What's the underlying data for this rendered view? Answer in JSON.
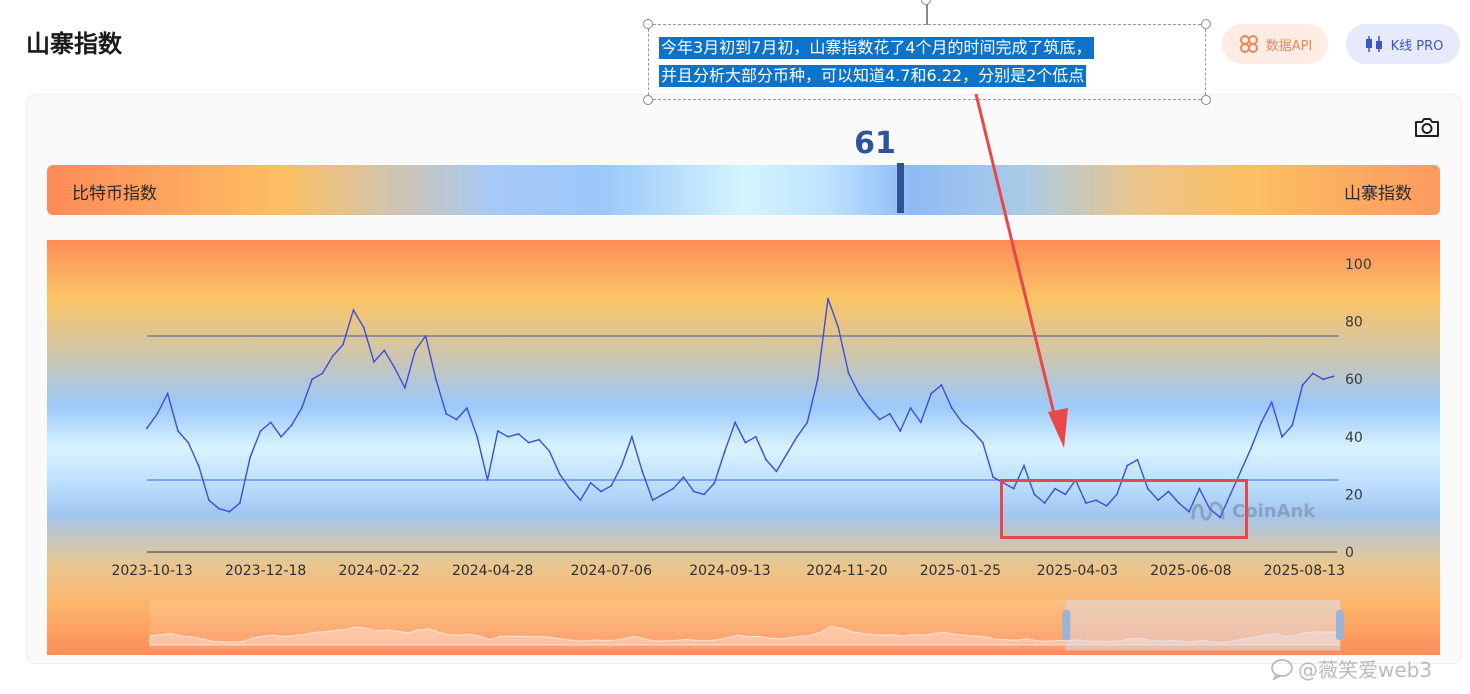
{
  "page": {
    "title": "山寨指数"
  },
  "buttons": {
    "api_label": "数据API",
    "kline_label": "K线 PRO"
  },
  "gauge": {
    "current_value": "61",
    "left_label": "比特币指数",
    "right_label": "山寨指数"
  },
  "annotation": {
    "line1": "今年3月初到7月初，山寨指数花了4个月的时间完成了筑底，",
    "line2": "并且分析大部分币种，可以知道4.7和6.22，分别是2个低点"
  },
  "watermark": {
    "chart": "CoinAnk",
    "footer": "@薇笑爱web3"
  },
  "colors": {
    "series_line": "#3b4fd9",
    "marker": "#2d5596",
    "highlight": "#e84848",
    "annotation_bg": "#0c73c9"
  },
  "icons": {
    "camera": "camera-icon",
    "api": "api-icon",
    "kline": "candlestick-icon"
  },
  "chart_data": {
    "type": "line",
    "title": "",
    "ylim": [
      0,
      100
    ],
    "y_ticks": [
      "0",
      "20",
      "40",
      "60",
      "80",
      "100"
    ],
    "x_ticks": [
      "2023-10-13",
      "2023-12-18",
      "2024-02-22",
      "2024-04-28",
      "2024-07-06",
      "2024-09-13",
      "2024-11-20",
      "2025-01-25",
      "2025-04-03",
      "2025-06-08",
      "2025-08-13"
    ],
    "x_range": [
      "2023-10-10",
      "2025-09-01"
    ],
    "reference_lines": [
      75,
      25
    ],
    "grid": false,
    "zoom_window": [
      0.77,
      1.0
    ],
    "series": [
      {
        "x": [
          "2023-10-10",
          "2023-10-16",
          "2023-10-22",
          "2023-10-28",
          "2023-11-03",
          "2023-11-09",
          "2023-11-15",
          "2023-11-21",
          "2023-11-27",
          "2023-12-03",
          "2023-12-09",
          "2023-12-15",
          "2023-12-21",
          "2023-12-27",
          "2024-01-02",
          "2024-01-08",
          "2024-01-14",
          "2024-01-20",
          "2024-01-26",
          "2024-02-01",
          "2024-02-07",
          "2024-02-13",
          "2024-02-19",
          "2024-02-25",
          "2024-03-02",
          "2024-03-08",
          "2024-03-14",
          "2024-03-20",
          "2024-03-26",
          "2024-04-01",
          "2024-04-07",
          "2024-04-13",
          "2024-04-19",
          "2024-04-25",
          "2024-05-01",
          "2024-05-07",
          "2024-05-13",
          "2024-05-19",
          "2024-05-25",
          "2024-05-31",
          "2024-06-06",
          "2024-06-12",
          "2024-06-18",
          "2024-06-24",
          "2024-06-30",
          "2024-07-06",
          "2024-07-12",
          "2024-07-18",
          "2024-07-24",
          "2024-07-30",
          "2024-08-05",
          "2024-08-11",
          "2024-08-17",
          "2024-08-23",
          "2024-08-29",
          "2024-09-04",
          "2024-09-10",
          "2024-09-16",
          "2024-09-22",
          "2024-09-28",
          "2024-10-04",
          "2024-10-10",
          "2024-10-16",
          "2024-10-22",
          "2024-10-28",
          "2024-11-03",
          "2024-11-09",
          "2024-11-15",
          "2024-11-21",
          "2024-11-27",
          "2024-12-03",
          "2024-12-09",
          "2024-12-15",
          "2024-12-21",
          "2024-12-27",
          "2025-01-02",
          "2025-01-08",
          "2025-01-14",
          "2025-01-20",
          "2025-01-26",
          "2025-02-01",
          "2025-02-07",
          "2025-02-13",
          "2025-02-19",
          "2025-02-25",
          "2025-03-03",
          "2025-03-09",
          "2025-03-15",
          "2025-03-21",
          "2025-03-27",
          "2025-04-02",
          "2025-04-08",
          "2025-04-14",
          "2025-04-20",
          "2025-04-26",
          "2025-05-02",
          "2025-05-08",
          "2025-05-14",
          "2025-05-20",
          "2025-05-26",
          "2025-06-01",
          "2025-06-07",
          "2025-06-13",
          "2025-06-19",
          "2025-06-25",
          "2025-07-01",
          "2025-07-07",
          "2025-07-13",
          "2025-07-19",
          "2025-07-25",
          "2025-07-31",
          "2025-08-06",
          "2025-08-12",
          "2025-08-18",
          "2025-08-24",
          "2025-08-30"
        ],
        "values": [
          43,
          48,
          55,
          42,
          38,
          30,
          18,
          15,
          14,
          17,
          33,
          42,
          45,
          40,
          44,
          50,
          60,
          62,
          68,
          72,
          84,
          78,
          66,
          70,
          64,
          57,
          70,
          75,
          60,
          48,
          46,
          50,
          40,
          25,
          42,
          40,
          41,
          38,
          39,
          35,
          27,
          22,
          18,
          24,
          21,
          23,
          30,
          40,
          28,
          18,
          20,
          22,
          26,
          21,
          20,
          24,
          35,
          45,
          38,
          40,
          32,
          28,
          34,
          40,
          45,
          60,
          88,
          78,
          62,
          55,
          50,
          46,
          48,
          42,
          50,
          45,
          55,
          58,
          50,
          45,
          42,
          38,
          26,
          24,
          22,
          30,
          20,
          17,
          22,
          20,
          25,
          17,
          18,
          16,
          20,
          30,
          32,
          22,
          18,
          21,
          17,
          14,
          22,
          15,
          12,
          20,
          28,
          36,
          45,
          52,
          40,
          44,
          58,
          62,
          60,
          61
        ]
      }
    ]
  }
}
